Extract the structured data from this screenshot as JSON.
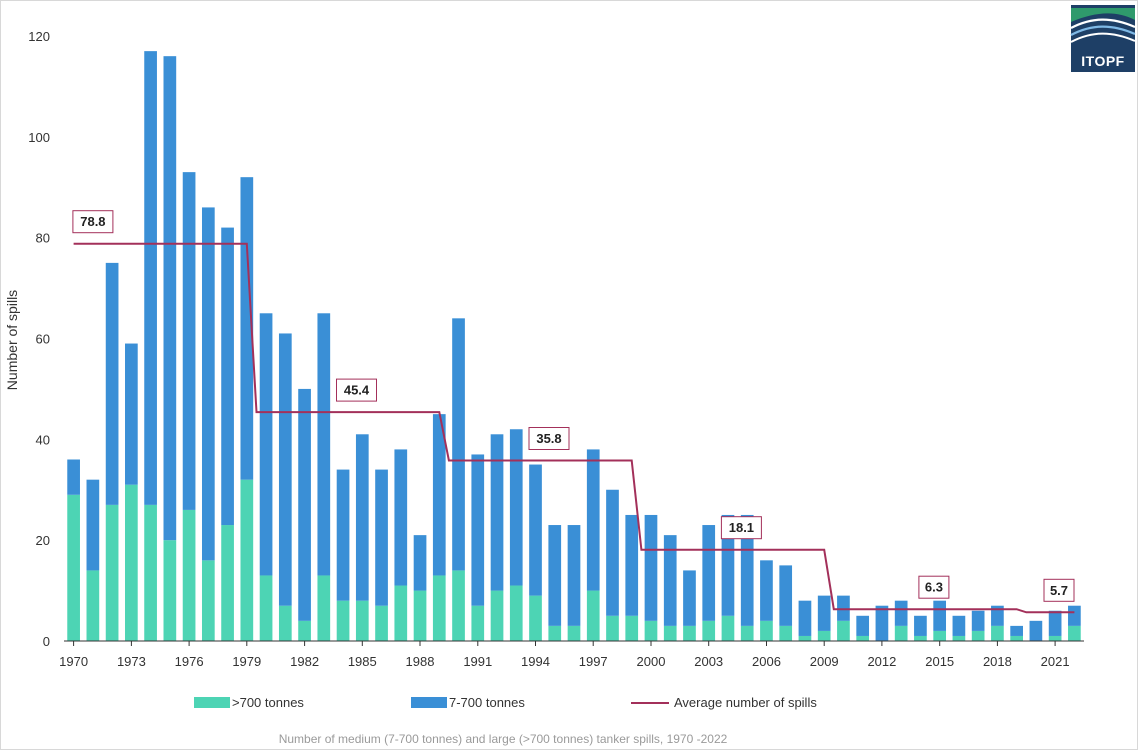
{
  "chart_data": {
    "type": "bar",
    "stacked": true,
    "title": "",
    "caption": "Number of medium (7-700 tonnes) and large (>700 tonnes) tanker spills, 1970 -2022",
    "ylabel": "Number of spills",
    "xlabel": "",
    "ylim": [
      0,
      120
    ],
    "yticks": [
      0,
      20,
      40,
      60,
      80,
      100,
      120
    ],
    "xtick_labels": [
      "1970",
      "1973",
      "1976",
      "1979",
      "1982",
      "1985",
      "1988",
      "1991",
      "1994",
      "1997",
      "2000",
      "2003",
      "2006",
      "2009",
      "2012",
      "2015",
      "2018",
      "2021"
    ],
    "categories": [
      1970,
      1971,
      1972,
      1973,
      1974,
      1975,
      1976,
      1977,
      1978,
      1979,
      1980,
      1981,
      1982,
      1983,
      1984,
      1985,
      1986,
      1987,
      1988,
      1989,
      1990,
      1991,
      1992,
      1993,
      1994,
      1995,
      1996,
      1997,
      1998,
      1999,
      2000,
      2001,
      2002,
      2003,
      2004,
      2005,
      2006,
      2007,
      2008,
      2009,
      2010,
      2011,
      2012,
      2013,
      2014,
      2015,
      2016,
      2017,
      2018,
      2019,
      2020,
      2021,
      2022
    ],
    "grid": false,
    "legend_position": "bottom",
    "series": [
      {
        "name": ">700 tonnes",
        "color": "#4dd4b4",
        "values": [
          29,
          14,
          27,
          31,
          27,
          20,
          26,
          16,
          23,
          32,
          13,
          7,
          4,
          13,
          8,
          8,
          7,
          11,
          10,
          13,
          14,
          7,
          10,
          11,
          9,
          3,
          3,
          10,
          5,
          5,
          4,
          3,
          3,
          4,
          5,
          3,
          4,
          3,
          1,
          2,
          4,
          1,
          0,
          3,
          1,
          2,
          1,
          2,
          3,
          1,
          0,
          1,
          3
        ]
      },
      {
        "name": "7-700 tonnes",
        "color": "#3a8fd6",
        "values": [
          7,
          18,
          48,
          28,
          90,
          96,
          67,
          70,
          59,
          60,
          52,
          54,
          46,
          52,
          26,
          33,
          27,
          27,
          11,
          32,
          50,
          30,
          31,
          31,
          26,
          20,
          20,
          28,
          25,
          20,
          21,
          18,
          11,
          19,
          20,
          22,
          12,
          12,
          7,
          7,
          5,
          4,
          7,
          5,
          4,
          6,
          4,
          4,
          4,
          2,
          4,
          5,
          4
        ]
      }
    ],
    "average_series": {
      "name": "Average number of spills",
      "color": "#a3305a",
      "segments": [
        {
          "from": 1970,
          "to": 1979,
          "value": 78.8,
          "label": "78.8"
        },
        {
          "from": 1980,
          "to": 1989,
          "value": 45.4,
          "label": "45.4"
        },
        {
          "from": 1990,
          "to": 1999,
          "value": 35.8,
          "label": "35.8"
        },
        {
          "from": 2000,
          "to": 2009,
          "value": 18.1,
          "label": "18.1"
        },
        {
          "from": 2010,
          "to": 2019,
          "value": 6.3,
          "label": "6.3"
        },
        {
          "from": 2020,
          "to": 2022,
          "value": 5.7,
          "label": "5.7"
        }
      ]
    }
  },
  "logo": {
    "text": "ITOPF",
    "background": "#1e3f66"
  }
}
